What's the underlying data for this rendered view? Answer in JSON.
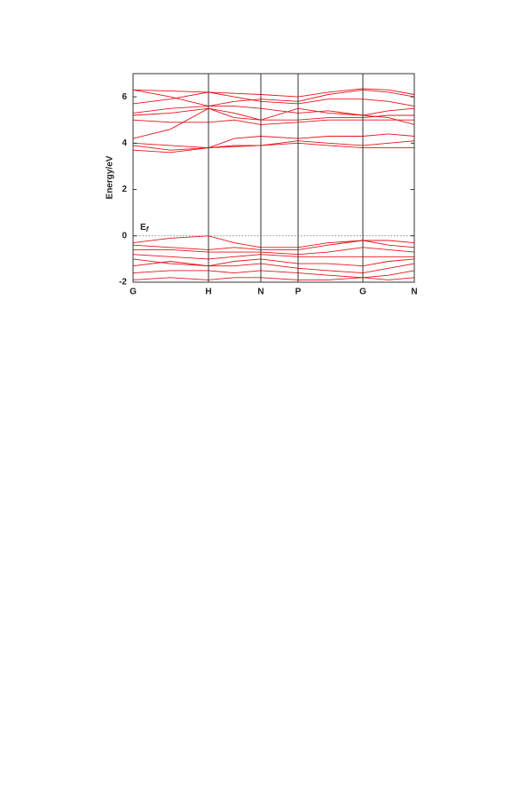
{
  "chart_data": {
    "type": "line",
    "ylabel": "Energy/eV",
    "fermi_level": 0,
    "fermi_label": {
      "base": "E",
      "subscript": "f"
    },
    "color": "#e8141c",
    "x": [
      0,
      0.42,
      0.85,
      1.14,
      1.44,
      1.86,
      2.2,
      2.59,
      2.88,
      3.17
    ],
    "xlim": [
      0,
      3.17
    ],
    "xticks": [
      {
        "value": 0,
        "label": "G"
      },
      {
        "value": 0.85,
        "label": "H"
      },
      {
        "value": 1.44,
        "label": "N"
      },
      {
        "value": 1.86,
        "label": "P"
      },
      {
        "value": 2.59,
        "label": "G"
      },
      {
        "value": 3.17,
        "label": "N"
      }
    ],
    "ylim": [
      -2,
      7
    ],
    "yticks": [
      -2,
      0,
      2,
      4,
      6
    ],
    "series": [
      {
        "values": [
          6.3,
          6.25,
          6.2,
          6.15,
          6.1,
          6.0,
          6.2,
          6.35,
          6.3,
          6.1
        ]
      },
      {
        "values": [
          6.3,
          6.0,
          5.6,
          5.8,
          5.9,
          5.8,
          6.1,
          6.3,
          6.2,
          6.0
        ]
      },
      {
        "values": [
          5.7,
          5.9,
          6.2,
          6.0,
          5.8,
          5.7,
          5.9,
          5.9,
          5.8,
          5.6
        ]
      },
      {
        "values": [
          5.3,
          5.5,
          5.6,
          5.6,
          5.5,
          5.3,
          5.4,
          5.2,
          5.4,
          5.5
        ]
      },
      {
        "values": [
          5.2,
          5.3,
          5.5,
          5.3,
          5.0,
          5.0,
          5.1,
          5.1,
          5.2,
          5.2
        ]
      },
      {
        "values": [
          5.0,
          4.9,
          4.9,
          5.0,
          4.8,
          4.9,
          5.0,
          5.0,
          5.0,
          5.0
        ]
      },
      {
        "values": [
          4.2,
          4.6,
          5.5,
          5.1,
          5.0,
          5.5,
          5.3,
          5.2,
          5.1,
          4.8
        ]
      },
      {
        "values": [
          4.0,
          3.9,
          3.8,
          4.2,
          4.3,
          4.2,
          4.3,
          4.3,
          4.4,
          4.3
        ]
      },
      {
        "values": [
          3.9,
          3.7,
          3.8,
          3.9,
          3.9,
          4.1,
          4.0,
          3.9,
          4.0,
          4.1
        ]
      },
      {
        "values": [
          3.7,
          3.6,
          3.8,
          3.85,
          3.9,
          4.0,
          3.9,
          3.8,
          3.8,
          3.8
        ]
      },
      {
        "values": [
          -0.3,
          -0.1,
          0,
          -0.3,
          -0.5,
          -0.5,
          -0.3,
          -0.2,
          -0.2,
          -0.3
        ]
      },
      {
        "values": [
          -0.4,
          -0.5,
          -0.6,
          -0.5,
          -0.6,
          -0.6,
          -0.4,
          -0.2,
          -0.4,
          -0.5
        ]
      },
      {
        "values": [
          -0.6,
          -0.6,
          -0.7,
          -0.7,
          -0.7,
          -0.8,
          -0.7,
          -0.5,
          -0.6,
          -0.7
        ]
      },
      {
        "values": [
          -0.8,
          -0.9,
          -1.0,
          -0.9,
          -0.8,
          -0.9,
          -0.9,
          -0.9,
          -0.9,
          -0.9
        ]
      },
      {
        "values": [
          -1.0,
          -1.2,
          -1.3,
          -1.1,
          -1.0,
          -1.2,
          -1.2,
          -1.3,
          -1.1,
          -1.0
        ]
      },
      {
        "values": [
          -1.3,
          -1.1,
          -1.3,
          -1.3,
          -1.2,
          -1.4,
          -1.5,
          -1.6,
          -1.4,
          -1.2
        ]
      },
      {
        "values": [
          -1.6,
          -1.5,
          -1.5,
          -1.6,
          -1.5,
          -1.6,
          -1.7,
          -1.8,
          -1.7,
          -1.5
        ]
      },
      {
        "values": [
          -1.9,
          -1.8,
          -1.9,
          -1.8,
          -1.8,
          -1.9,
          -1.9,
          -1.8,
          -1.9,
          -1.8
        ]
      }
    ]
  }
}
